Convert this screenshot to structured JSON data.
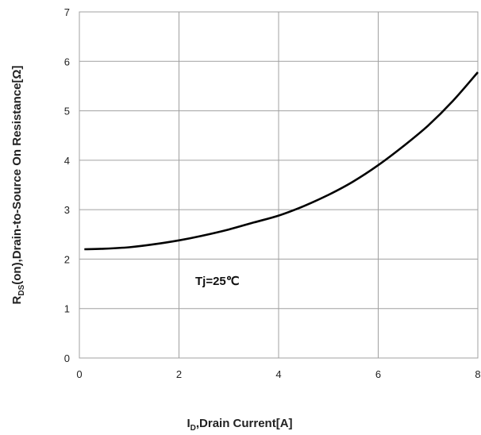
{
  "chart_data": {
    "type": "line",
    "xlabel_main": "I",
    "xlabel_sub": "D",
    "xlabel_rest": ",Drain Current[A]",
    "ylabel_main": "R",
    "ylabel_sub": "DS",
    "ylabel_rest": "(on),Drain-to-Source On  Resistance[Ω]",
    "xlim": [
      0,
      8
    ],
    "ylim": [
      0,
      7
    ],
    "xticks": [
      "0",
      "2",
      "4",
      "6",
      "8"
    ],
    "yticks": [
      "0",
      "1",
      "2",
      "3",
      "4",
      "5",
      "6",
      "7"
    ],
    "grid": true,
    "annotation": "Tj=25℃",
    "line_color": "#000000",
    "series": [
      {
        "x": [
          0.1,
          0.5,
          1.0,
          1.5,
          2.0,
          2.5,
          3.0,
          3.5,
          4.0,
          4.5,
          5.0,
          5.5,
          6.0,
          6.5,
          7.0,
          7.5,
          8.0
        ],
        "values": [
          2.2,
          2.21,
          2.24,
          2.3,
          2.38,
          2.48,
          2.6,
          2.74,
          2.88,
          3.07,
          3.3,
          3.57,
          3.9,
          4.28,
          4.7,
          5.2,
          5.78
        ]
      }
    ]
  }
}
